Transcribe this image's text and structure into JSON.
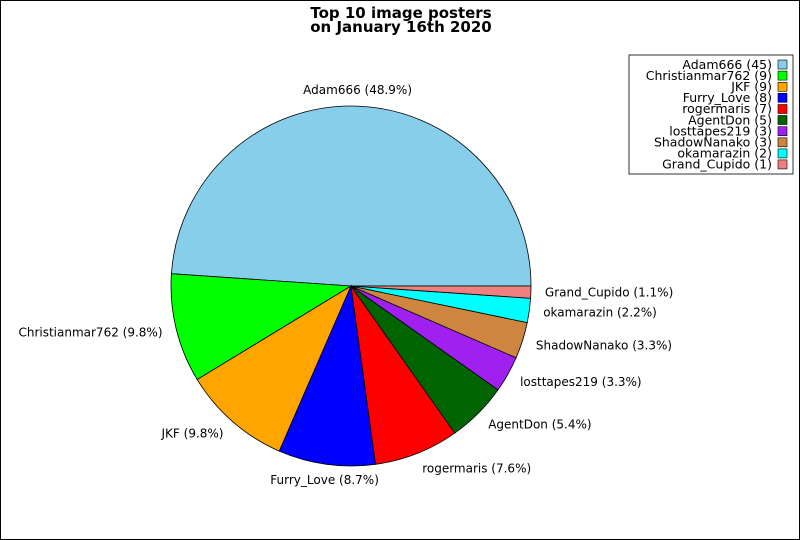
{
  "title_lines": [
    "Top 10 image posters",
    "on January 16th 2020"
  ],
  "chart_data": {
    "type": "pie",
    "title": "Top 10 image posters on January 16th 2020",
    "start_angle_deg": 0,
    "direction": "counterclockwise-from-right",
    "legend_position": "top-right",
    "slices": [
      {
        "label": "Adam666",
        "value": 45,
        "percent_label": "Adam666 (48.9%)",
        "legend_label": "Adam666 (45)",
        "color": "#87CEEB"
      },
      {
        "label": "Christianmar762",
        "value": 9,
        "percent_label": "Christianmar762 (9.8%)",
        "legend_label": "Christianmar762 (9)",
        "color": "#00FF00"
      },
      {
        "label": "JKF",
        "value": 9,
        "percent_label": "JKF (9.8%)",
        "legend_label": "JKF (9)",
        "color": "#FFA500"
      },
      {
        "label": "Furry_Love",
        "value": 8,
        "percent_label": "Furry_Love (8.7%)",
        "legend_label": "Furry_Love (8)",
        "color": "#0000FF"
      },
      {
        "label": "rogermaris",
        "value": 7,
        "percent_label": "rogermaris (7.6%)",
        "legend_label": "rogermaris (7)",
        "color": "#FF0000"
      },
      {
        "label": "AgentDon",
        "value": 5,
        "percent_label": "AgentDon (5.4%)",
        "legend_label": "AgentDon (5)",
        "color": "#006400"
      },
      {
        "label": "losttapes219",
        "value": 3,
        "percent_label": "losttapes219 (3.3%)",
        "legend_label": "losttapes219 (3)",
        "color": "#A020F0"
      },
      {
        "label": "ShadowNanako",
        "value": 3,
        "percent_label": "ShadowNanako (3.3%)",
        "legend_label": "ShadowNanako (3)",
        "color": "#CD853F"
      },
      {
        "label": "okamarazin",
        "value": 2,
        "percent_label": "okamarazin (2.2%)",
        "legend_label": "okamarazin (2)",
        "color": "#00FFFF"
      },
      {
        "label": "Grand_Cupido",
        "value": 1,
        "percent_label": "Grand_Cupido (1.1%)",
        "legend_label": "Grand_Cupido (1)",
        "color": "#F08080"
      }
    ]
  }
}
